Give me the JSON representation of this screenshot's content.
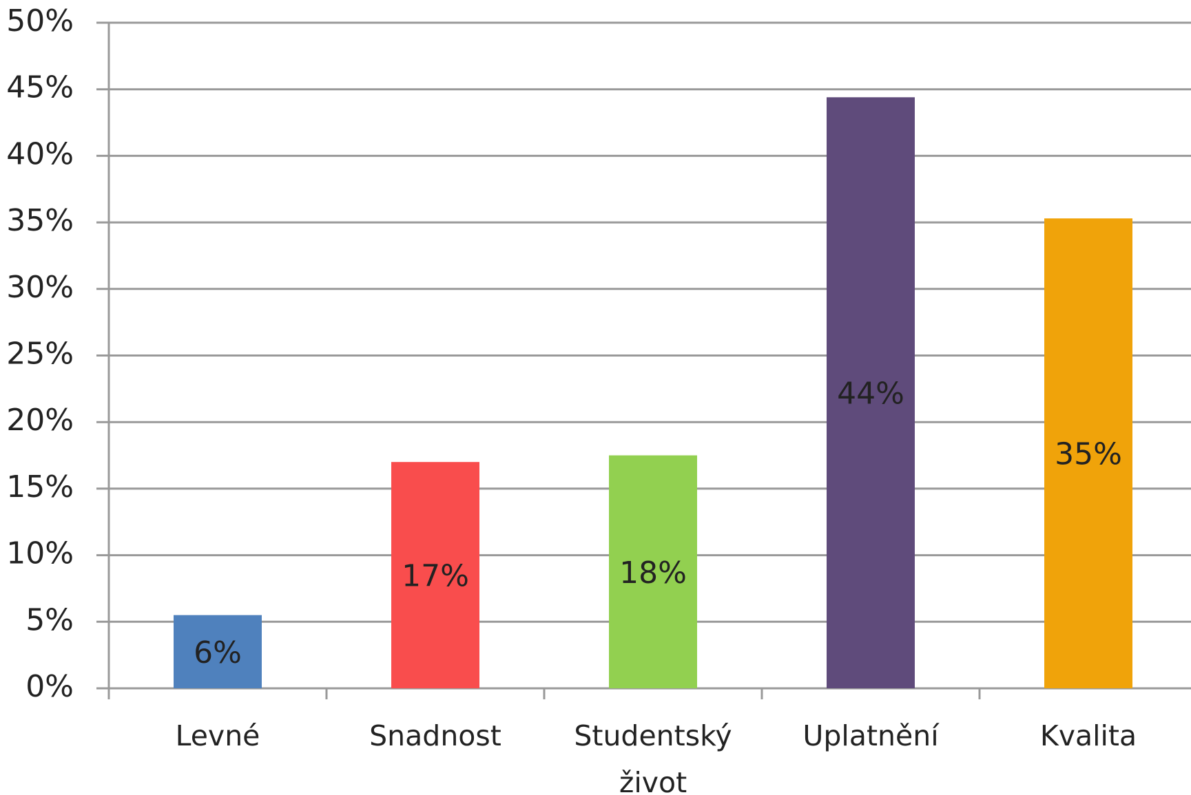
{
  "chart_data": {
    "type": "bar",
    "categories": [
      "Levné",
      "Snadnost",
      "Studentský život",
      "Uplatnění",
      "Kvalita"
    ],
    "values": [
      5.5,
      17,
      17.5,
      44.4,
      35.3
    ],
    "value_labels": [
      "6%",
      "17%",
      "18%",
      "44%",
      "35%"
    ],
    "colors": [
      "#4f81bd",
      "#f94d4d",
      "#92d050",
      "#5f4b7b",
      "#f0a30a"
    ],
    "ylim": [
      0,
      50
    ],
    "yticks": [
      {
        "value": 0,
        "label": "0%"
      },
      {
        "value": 5,
        "label": "5%"
      },
      {
        "value": 10,
        "label": "10%"
      },
      {
        "value": 15,
        "label": "15%"
      },
      {
        "value": 20,
        "label": "20%"
      },
      {
        "value": 25,
        "label": "25%"
      },
      {
        "value": 30,
        "label": "30%"
      },
      {
        "value": 35,
        "label": "35%"
      },
      {
        "value": 40,
        "label": "40%"
      },
      {
        "value": 45,
        "label": "45%"
      },
      {
        "value": 50,
        "label": "50%"
      }
    ],
    "grid": true
  }
}
